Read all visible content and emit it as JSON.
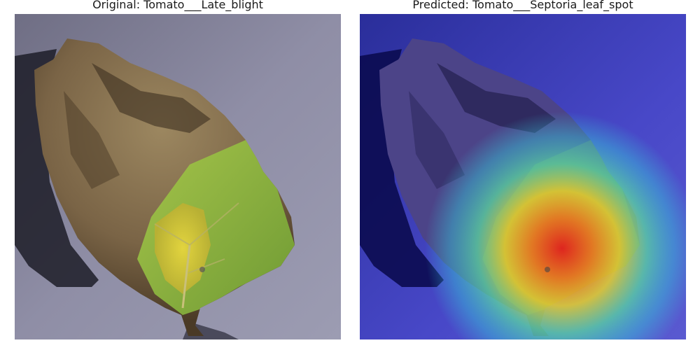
{
  "panels": [
    {
      "title": "Original: Tomato___Late_blight",
      "image": "tomato-leaf-photo",
      "overlay": "none"
    },
    {
      "title": "Predicted: Tomato___Septoria_leaf_spot",
      "image": "tomato-leaf-photo",
      "overlay": "gradcam-heatmap-jet"
    }
  ],
  "colors": {
    "background_surface": "#8a8aa0",
    "leaf_dry": "#8b7350",
    "leaf_green": "#8fb73e",
    "leaf_yellow": "#d6c83a",
    "heatmap_low": "#1e22b4",
    "heatmap_mid": "#36d6c8",
    "heatmap_high": "#e8221a"
  }
}
